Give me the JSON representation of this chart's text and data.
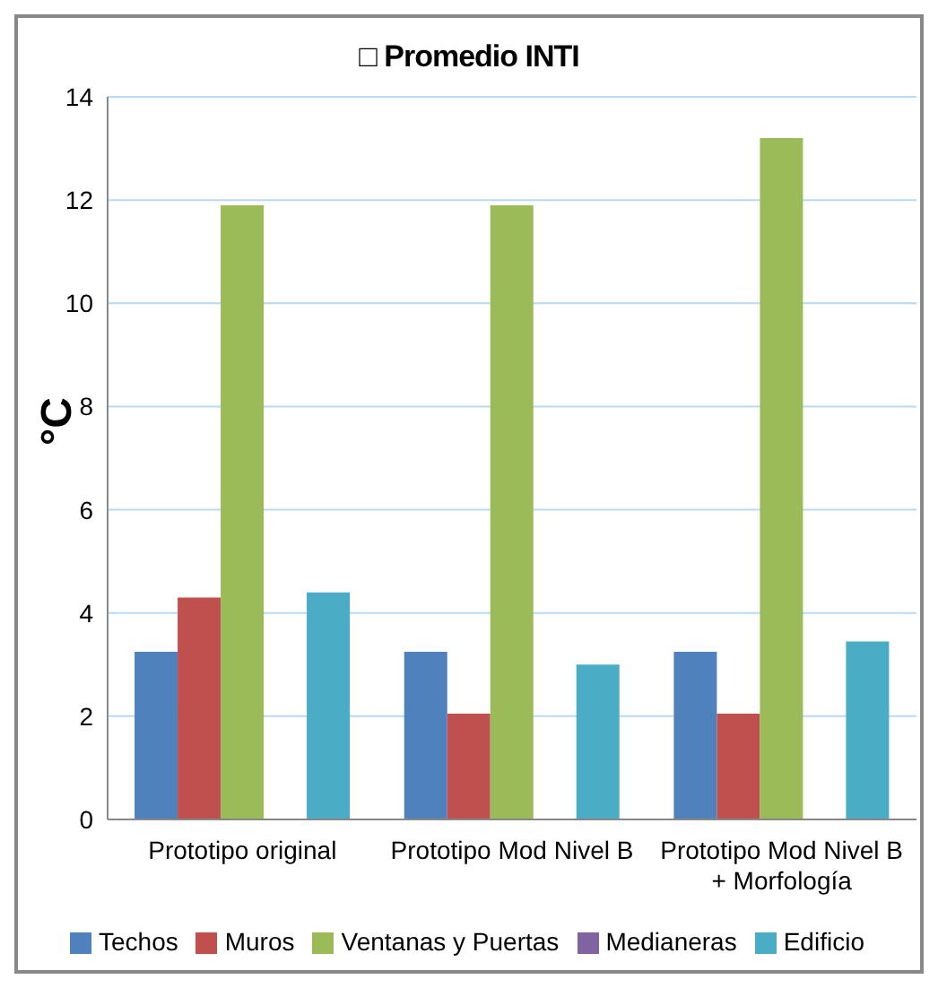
{
  "chart_data": {
    "type": "bar",
    "title": "□ Promedio INTI",
    "ylabel": "°C",
    "categories": [
      "Prototipo original",
      "Prototipo Mod Nivel B",
      "Prototipo Mod Nivel B + Morfología"
    ],
    "series": [
      {
        "name": "Techos",
        "color": "#4f81bd",
        "values": [
          3.25,
          3.25,
          3.25
        ]
      },
      {
        "name": "Muros",
        "color": "#c0504d",
        "values": [
          4.3,
          2.05,
          2.05
        ]
      },
      {
        "name": "Ventanas y Puertas",
        "color": "#9bbb59",
        "values": [
          11.9,
          11.9,
          13.2
        ]
      },
      {
        "name": "Medianeras",
        "color": "#8064a2",
        "values": [
          0,
          0,
          0
        ]
      },
      {
        "name": "Edificio",
        "color": "#4bacc6",
        "values": [
          4.4,
          3.0,
          3.45
        ]
      }
    ],
    "ylim": [
      0,
      14
    ],
    "yticks": [
      0,
      2,
      4,
      6,
      8,
      10,
      12,
      14
    ],
    "grid": "y",
    "legend": "bottom"
  }
}
